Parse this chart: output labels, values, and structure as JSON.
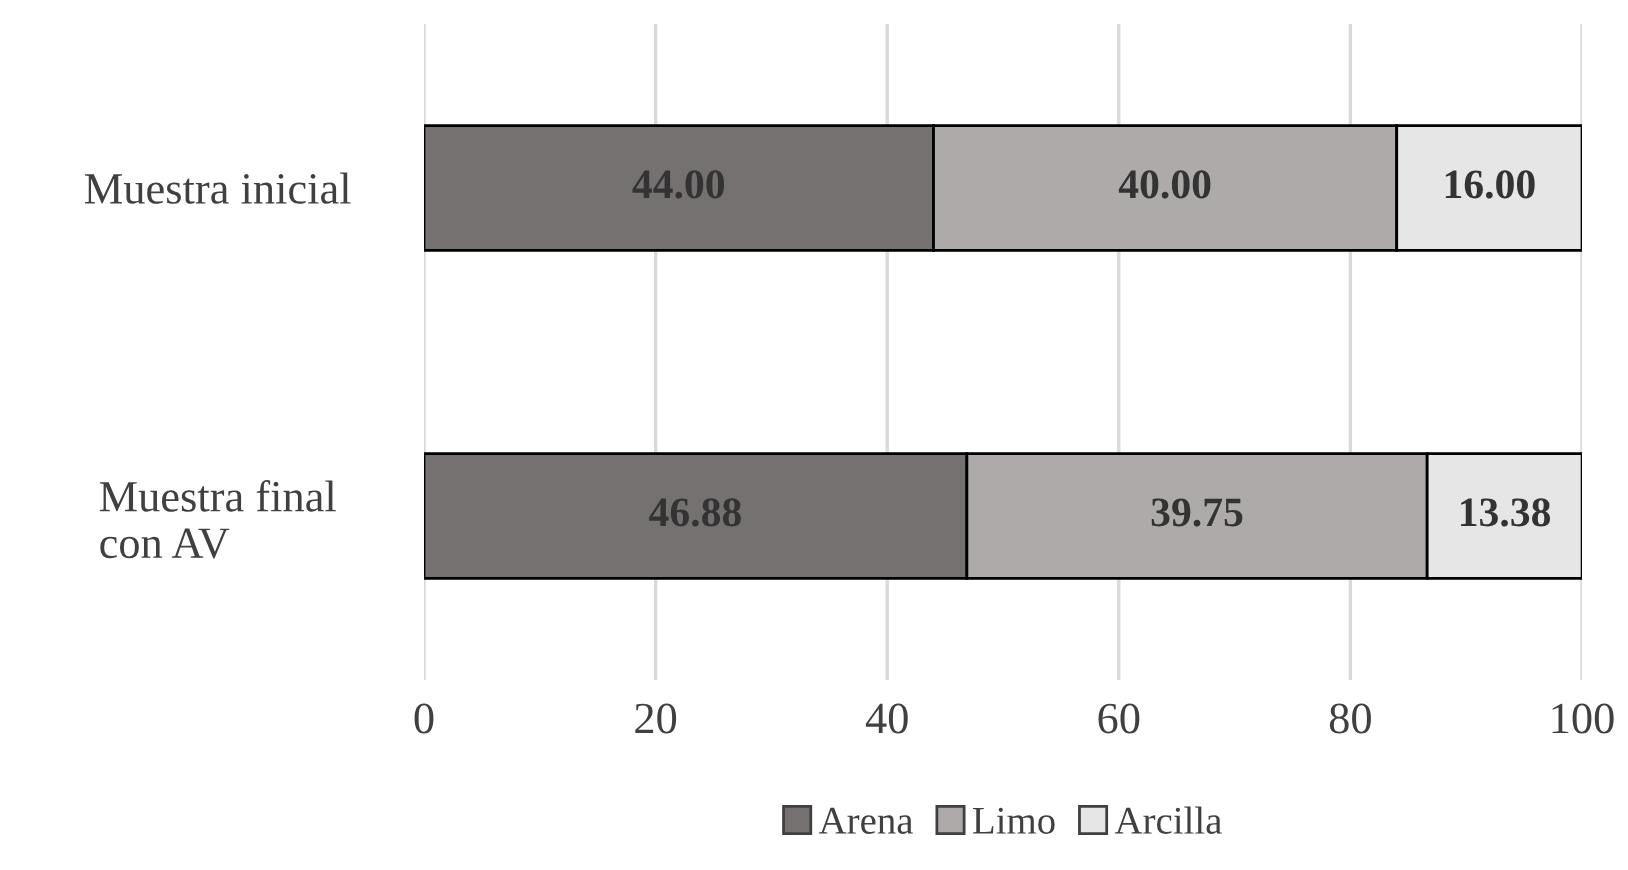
{
  "chart_data": {
    "type": "bar",
    "orientation": "horizontal",
    "stacked": true,
    "categories": [
      "Muestra inicial",
      "Muestra final\ncon AV"
    ],
    "series": [
      {
        "name": "Arena",
        "color": "#767171",
        "values": [
          44.0,
          46.88
        ]
      },
      {
        "name": "Limo",
        "color": "#aeaaaa",
        "values": [
          40.0,
          39.75
        ]
      },
      {
        "name": "Arcilla",
        "color": "#e7e6e6",
        "values": [
          16.0,
          13.38
        ]
      }
    ],
    "value_labels": [
      [
        "44.00",
        "46.88"
      ],
      [
        "40.00",
        "39.75"
      ],
      [
        "16.00",
        "13.38"
      ]
    ],
    "xlim": [
      0,
      100
    ],
    "xticks": [
      0,
      20,
      40,
      60,
      80,
      100
    ],
    "grid": "x",
    "legend": "bottom"
  }
}
